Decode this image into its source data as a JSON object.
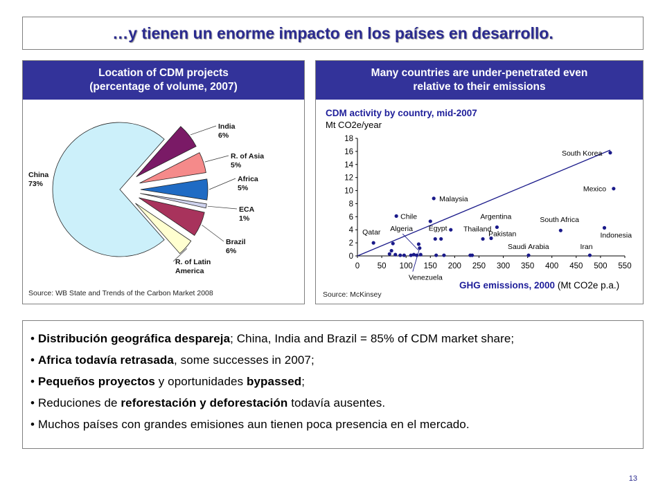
{
  "slide_title": "…y tienen un enorme impacto en los países en desarrollo.",
  "left_panel": {
    "header_line1": "Location of CDM projects",
    "header_line2": "(percentage of volume, 2007)",
    "source": "Source:  WB State and Trends of the Carbon Market 2008"
  },
  "right_panel": {
    "header_line1": "Many countries are under-penetrated even",
    "header_line2": "relative to their emissions",
    "source": "Source:  McKinsey"
  },
  "chart_data": [
    {
      "type": "pie",
      "labels": [
        "China",
        "India",
        "R. of Asia",
        "Africa",
        "ECA",
        "Brazil",
        "R. of Latin America"
      ],
      "label_lines": [
        [
          "China",
          "73%"
        ],
        [
          "India",
          "6%"
        ],
        [
          "R. of Asia",
          "5%"
        ],
        [
          "Africa",
          "5%"
        ],
        [
          "ECA",
          "1%"
        ],
        [
          "Brazil",
          "6%"
        ],
        [
          "R. of Latin",
          "America"
        ]
      ],
      "values": [
        73,
        6,
        5,
        5,
        1,
        6,
        4
      ],
      "colors": [
        "#ccf0fa",
        "#7a1a66",
        "#f58a8a",
        "#1f6bc4",
        "#cfd3ee",
        "#a8335c",
        "#ffffd0"
      ]
    },
    {
      "type": "scatter",
      "title": "CDM activity by country, mid-2007",
      "ylabel": "Mt CO2e/year",
      "xlabel_bold": "GHG emissions, 2000",
      "xlabel_unit": "(Mt CO2e p.a.)",
      "xlim": [
        0,
        550
      ],
      "ylim": [
        0,
        18
      ],
      "xticks": [
        0,
        50,
        100,
        150,
        200,
        250,
        300,
        350,
        400,
        450,
        500,
        550
      ],
      "yticks": [
        0,
        2,
        4,
        6,
        8,
        10,
        12,
        14,
        16,
        18
      ],
      "trend_line": [
        [
          0,
          0
        ],
        [
          520,
          16.2
        ]
      ],
      "points": [
        {
          "label": "South Korea",
          "x": 520,
          "y": 15.8
        },
        {
          "label": "Mexico",
          "x": 527,
          "y": 10.3
        },
        {
          "label": "Malaysia",
          "x": 157,
          "y": 8.8
        },
        {
          "label": "Chile",
          "x": 80,
          "y": 6.1
        },
        {
          "label": "Argentina",
          "x": 287,
          "y": 4.4
        },
        {
          "label": "Thailand",
          "x": 275,
          "y": 2.7
        },
        {
          "label": "Pakistan",
          "x": 258,
          "y": 2.6
        },
        {
          "label": "South Africa",
          "x": 418,
          "y": 3.9
        },
        {
          "label": "Indonesia",
          "x": 508,
          "y": 4.3
        },
        {
          "label": "Egypt",
          "x": 172,
          "y": 2.6
        },
        {
          "label": "Algeria",
          "x": 73,
          "y": 1.9
        },
        {
          "label": "Qatar",
          "x": 33,
          "y": 2.0
        },
        {
          "label": "Saudi Arabia",
          "x": 352,
          "y": 0.1
        },
        {
          "label": "Iran",
          "x": 478,
          "y": 0.1
        },
        {
          "label": "Venezuela",
          "x": 128,
          "y": 1.2
        },
        {
          "label": "",
          "x": 160,
          "y": 2.6
        },
        {
          "label": "",
          "x": 150,
          "y": 5.3
        },
        {
          "label": "",
          "x": 192,
          "y": 4.0
        },
        {
          "label": "",
          "x": 126,
          "y": 1.8
        },
        {
          "label": "",
          "x": 70,
          "y": 0.8
        },
        {
          "label": "",
          "x": 78,
          "y": 0.2
        },
        {
          "label": "",
          "x": 66,
          "y": 0.3
        },
        {
          "label": "",
          "x": 88,
          "y": 0.1
        },
        {
          "label": "",
          "x": 96,
          "y": 0.1
        },
        {
          "label": "",
          "x": 110,
          "y": 0.1
        },
        {
          "label": "",
          "x": 116,
          "y": 0.2
        },
        {
          "label": "",
          "x": 122,
          "y": 0.1
        },
        {
          "label": "",
          "x": 130,
          "y": 0.2
        },
        {
          "label": "",
          "x": 162,
          "y": 0.1
        },
        {
          "label": "",
          "x": 178,
          "y": 0.1
        },
        {
          "label": "",
          "x": 232,
          "y": 0.1
        },
        {
          "label": "",
          "x": 236,
          "y": 0.1
        }
      ]
    }
  ],
  "bullets": [
    {
      "bold": "Distribución geográfica despareja",
      "rest": "; China, India and Brazil =  85% of CDM market share;"
    },
    {
      "bold": "Africa todavía retrasada",
      "rest": ", some successes in 2007;"
    },
    {
      "pre": "",
      "bold": "Pequeños proyectos",
      "mid": " y oportunidades ",
      "bold2": "bypassed",
      "rest": ";"
    },
    {
      "pre": "Reduciones de ",
      "bold": "reforestación y  deforestación",
      "rest": " todavía ausentes."
    },
    {
      "pre": "Muchos países con grandes emisiones aun tienen poca presencia en el mercado.",
      "bold": "",
      "rest": ""
    }
  ],
  "page_number": "13"
}
